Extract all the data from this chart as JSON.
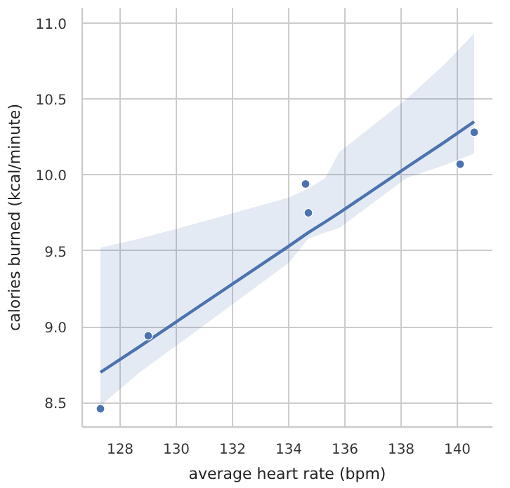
{
  "chart_data": {
    "type": "scatter",
    "xlabel": "average heart rate (bpm)",
    "ylabel": "calories burned (kcal/minute)",
    "xlim": [
      126.65,
      141.25
    ],
    "ylim": [
      8.34,
      11.1
    ],
    "xticks": [
      128,
      130,
      132,
      134,
      136,
      138,
      140
    ],
    "yticks": [
      8.5,
      {
        "value": 9,
        "label": "9.0"
      },
      9.5,
      {
        "value": 10,
        "label": "10.0"
      },
      10.5,
      {
        "value": 11,
        "label": "11.0"
      }
    ],
    "grid": true,
    "marker": "circle",
    "series": [
      {
        "color": "#4c72b0",
        "x": [
          127.3,
          129.0,
          134.6,
          134.7,
          140.1,
          140.6
        ],
        "values": [
          8.46,
          8.94,
          9.94,
          9.75,
          10.07,
          10.28
        ]
      },
      {
        "type": "line",
        "color": "#4c72b0",
        "line_style": "solid",
        "marker": "none",
        "x": [
          127.3,
          128.7,
          130.7,
          134.0,
          134.7,
          135.3,
          135.8,
          138.2,
          139.5,
          140.6
        ],
        "values": [
          8.7,
          8.87,
          9.12,
          9.53,
          9.62,
          9.69,
          9.75,
          10.05,
          10.21,
          10.35
        ],
        "lower": [
          8.48,
          8.7,
          8.97,
          9.42,
          9.58,
          9.62,
          9.65,
          9.98,
          10.06,
          10.14
        ],
        "upper": [
          9.52,
          9.58,
          9.68,
          9.85,
          9.91,
          9.98,
          10.15,
          10.5,
          10.72,
          10.93
        ]
      }
    ]
  }
}
